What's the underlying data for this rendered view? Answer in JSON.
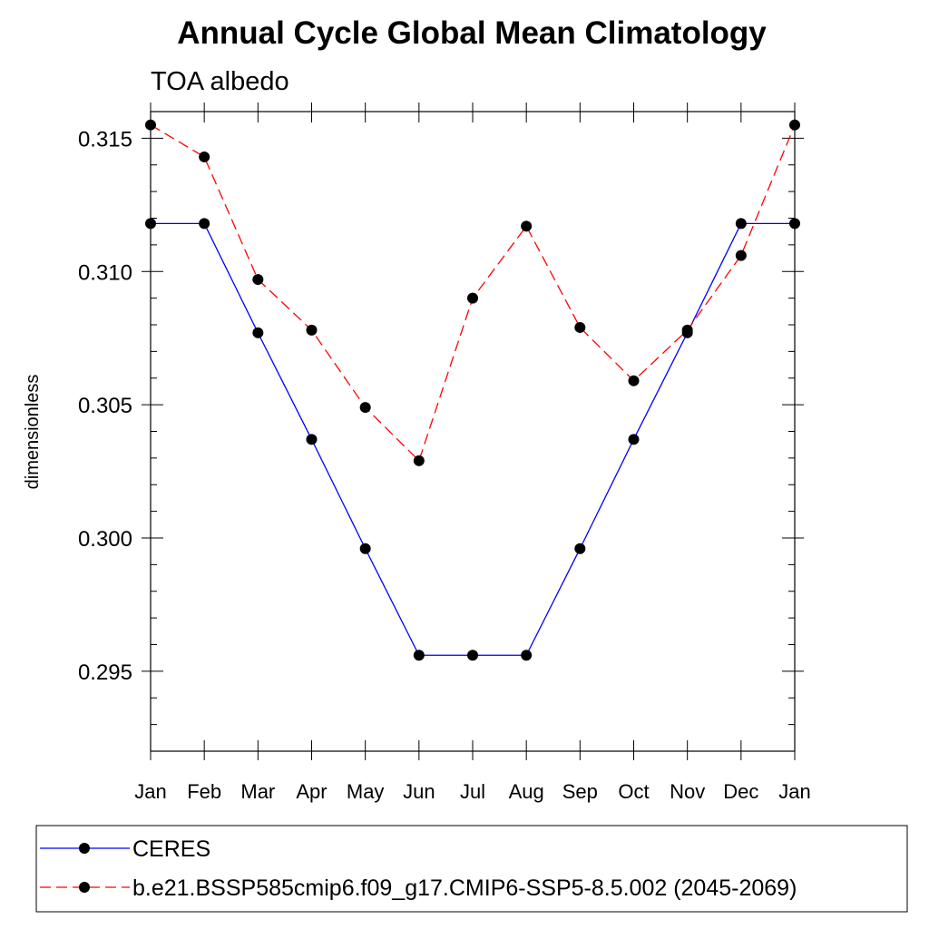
{
  "chart_data": {
    "type": "line",
    "title": "Annual Cycle Global Mean Climatology",
    "subtitle": "TOA albedo",
    "xlabel": "",
    "ylabel": "dimensionless",
    "categories": [
      "Jan",
      "Feb",
      "Mar",
      "Apr",
      "May",
      "Jun",
      "Jul",
      "Aug",
      "Sep",
      "Oct",
      "Nov",
      "Dec",
      "Jan"
    ],
    "ylim": [
      0.292,
      0.316
    ],
    "yticks": [
      0.295,
      0.3,
      0.305,
      0.31,
      0.315
    ],
    "ytick_labels": [
      "0.295",
      "0.300",
      "0.305",
      "0.310",
      "0.315"
    ],
    "legend_position": "bottom",
    "series": [
      {
        "name": "CERES",
        "color": "#0000ff",
        "dash": "solid",
        "values": [
          0.3118,
          0.3118,
          0.3077,
          0.3037,
          0.2996,
          0.2956,
          0.2956,
          0.2956,
          0.2996,
          0.3037,
          0.3077,
          0.3118,
          0.3118
        ]
      },
      {
        "name": "b.e21.BSSP585cmip6.f09_g17.CMIP6-SSP5-8.5.002 (2045-2069)",
        "color": "#ff0000",
        "dash": "dashed",
        "values": [
          0.3155,
          0.3143,
          0.3097,
          0.3078,
          0.3049,
          0.3029,
          0.309,
          0.3117,
          0.3079,
          0.3059,
          0.3078,
          0.3106,
          0.3155
        ]
      }
    ]
  }
}
